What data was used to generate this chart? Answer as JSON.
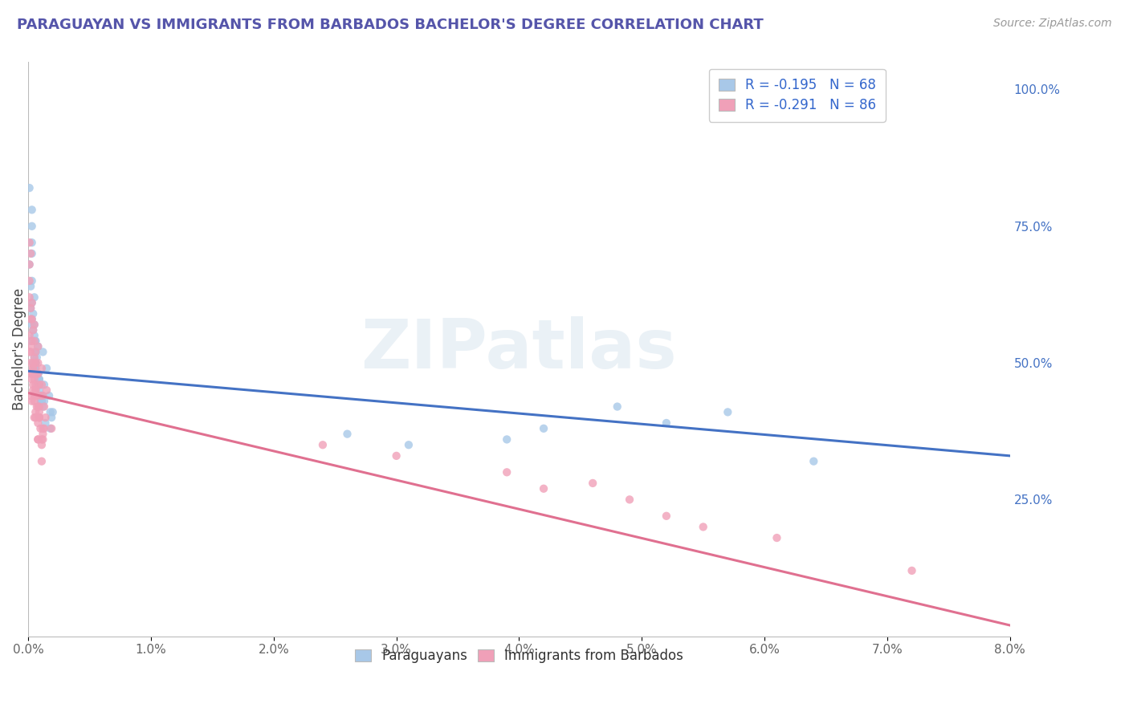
{
  "title": "PARAGUAYAN VS IMMIGRANTS FROM BARBADOS BACHELOR'S DEGREE CORRELATION CHART",
  "source": "Source: ZipAtlas.com",
  "ylabel": "Bachelor's Degree",
  "right_yticks": [
    "25.0%",
    "50.0%",
    "75.0%",
    "100.0%"
  ],
  "right_ytick_vals": [
    0.25,
    0.5,
    0.75,
    1.0
  ],
  "watermark": "ZIPatlas",
  "xlim": [
    0.0,
    0.08
  ],
  "ylim": [
    0.0,
    1.05
  ],
  "blue_scatter_color": "#a8c8e8",
  "pink_scatter_color": "#f0a0b8",
  "blue_line_color": "#4472c4",
  "pink_line_color": "#e07090",
  "background_color": "#ffffff",
  "grid_color": "#cccccc",
  "blue_line_y0": 0.485,
  "blue_line_y1": 0.33,
  "pink_line_y0": 0.445,
  "pink_line_y1": 0.02,
  "par_x": [
    0.0004,
    0.0008,
    0.0005,
    0.0012,
    0.0015,
    0.0006,
    0.0009,
    0.0011,
    0.0003,
    0.0002,
    0.0007,
    0.0004,
    0.0013,
    0.0006,
    0.0017,
    0.002,
    0.0005,
    0.0009,
    0.0006,
    0.0003,
    0.0011,
    0.0008,
    0.0014,
    0.0005,
    0.0003,
    0.0001,
    0.0009,
    0.0006,
    0.0012,
    0.0004,
    0.0002,
    0.0005,
    0.0008,
    0.0003,
    0.001,
    0.0018,
    0.0006,
    0.0008,
    0.0003,
    0.0001,
    0.0005,
    0.0011,
    0.0008,
    0.0006,
    0.0003,
    0.0002,
    0.0009,
    0.0006,
    0.0013,
    0.0019,
    0.0006,
    0.0009,
    0.0003,
    0.0011,
    0.0006,
    0.0008,
    0.0018,
    0.0003,
    0.0006,
    0.0008,
    0.057,
    0.042,
    0.031,
    0.026,
    0.039,
    0.048,
    0.052,
    0.064
  ],
  "par_y": [
    0.5,
    0.48,
    0.55,
    0.52,
    0.49,
    0.54,
    0.47,
    0.43,
    0.58,
    0.6,
    0.51,
    0.56,
    0.46,
    0.54,
    0.44,
    0.41,
    0.62,
    0.46,
    0.48,
    0.65,
    0.43,
    0.53,
    0.39,
    0.57,
    0.61,
    0.68,
    0.45,
    0.5,
    0.42,
    0.59,
    0.54,
    0.49,
    0.46,
    0.7,
    0.43,
    0.38,
    0.5,
    0.47,
    0.75,
    0.82,
    0.51,
    0.44,
    0.48,
    0.52,
    0.57,
    0.64,
    0.46,
    0.49,
    0.43,
    0.4,
    0.5,
    0.47,
    0.78,
    0.44,
    0.52,
    0.48,
    0.41,
    0.72,
    0.49,
    0.46,
    0.41,
    0.38,
    0.35,
    0.37,
    0.36,
    0.42,
    0.39,
    0.32
  ],
  "bar_x": [
    0.0003,
    0.0006,
    0.0004,
    0.0008,
    0.0012,
    0.0002,
    0.0005,
    0.0007,
    0.0009,
    0.0011,
    0.0001,
    0.0004,
    0.0006,
    0.0009,
    0.0013,
    0.0002,
    0.0005,
    0.0007,
    0.001,
    0.0014,
    0.0002,
    0.0004,
    0.0006,
    0.0008,
    0.0012,
    0.0001,
    0.0003,
    0.0006,
    0.0009,
    0.0013,
    0.0001,
    0.0003,
    0.0005,
    0.0008,
    0.0011,
    0.0002,
    0.0004,
    0.0006,
    0.0009,
    0.0012,
    0.0001,
    0.0003,
    0.0005,
    0.0008,
    0.0011,
    0.0015,
    0.0019,
    0.0003,
    0.0002,
    0.0005,
    0.0008,
    0.0011,
    0.0006,
    0.0004,
    0.0007,
    0.001,
    0.0002,
    0.0005,
    0.0001,
    0.0003,
    0.0006,
    0.0009,
    0.0012,
    0.0002,
    0.0005,
    0.0008,
    0.0011,
    0.0003,
    0.0006,
    0.0004,
    0.0008,
    0.0001,
    0.0003,
    0.0006,
    0.0009,
    0.039,
    0.046,
    0.03,
    0.052,
    0.024,
    0.061,
    0.072,
    0.049,
    0.055,
    0.042
  ],
  "bar_y": [
    0.48,
    0.45,
    0.5,
    0.42,
    0.38,
    0.52,
    0.47,
    0.44,
    0.4,
    0.36,
    0.55,
    0.49,
    0.46,
    0.42,
    0.38,
    0.58,
    0.51,
    0.48,
    0.44,
    0.4,
    0.6,
    0.56,
    0.52,
    0.48,
    0.44,
    0.62,
    0.54,
    0.5,
    0.46,
    0.42,
    0.65,
    0.58,
    0.54,
    0.5,
    0.46,
    0.53,
    0.49,
    0.45,
    0.41,
    0.37,
    0.68,
    0.61,
    0.57,
    0.53,
    0.49,
    0.45,
    0.38,
    0.47,
    0.7,
    0.43,
    0.39,
    0.35,
    0.41,
    0.46,
    0.42,
    0.38,
    0.5,
    0.44,
    0.72,
    0.48,
    0.44,
    0.4,
    0.36,
    0.44,
    0.4,
    0.36,
    0.32,
    0.43,
    0.4,
    0.45,
    0.36,
    0.52,
    0.48,
    0.44,
    0.4,
    0.3,
    0.28,
    0.33,
    0.22,
    0.35,
    0.18,
    0.12,
    0.25,
    0.2,
    0.27
  ]
}
